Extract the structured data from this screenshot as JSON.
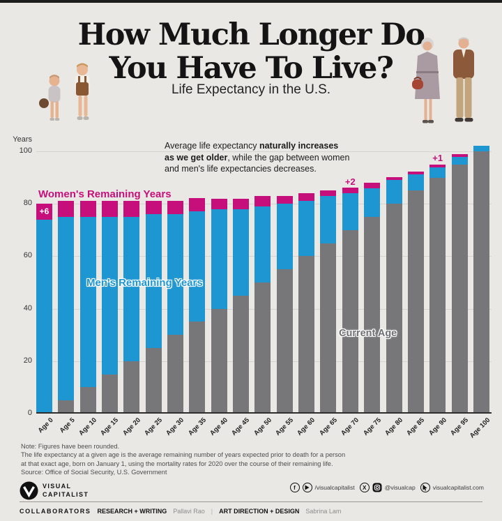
{
  "header": {
    "title_line1": "How Much Longer Do",
    "title_line2": "You Have To Live?",
    "subtitle": "Life Expectancy in the U.S."
  },
  "annotation": {
    "part1": "Average life expectancy ",
    "bold1": "naturally increases as we get older",
    "part2": ", while the gap between women and men's life expectancies decreases."
  },
  "labels": {
    "y_axis_title": "Years",
    "women_legend": "Women's Remaining Years",
    "men_legend": "Men's Remaining Years",
    "current_age": "Current Age"
  },
  "chart_data": {
    "type": "bar",
    "stacked": true,
    "title": "How Much Longer Do You Have To Live?",
    "subtitle": "Life Expectancy in the U.S.",
    "ylabel": "Years",
    "ylim": [
      0,
      105
    ],
    "y_ticks": [
      0,
      20,
      40,
      60,
      80,
      100
    ],
    "grid": true,
    "categories": [
      "Age 0",
      "Age 5",
      "Age 10",
      "Age 15",
      "Age 20",
      "Age 25",
      "Age 30",
      "Age 35",
      "Age 40",
      "Age 45",
      "Age 50",
      "Age 55",
      "Age 60",
      "Age 65",
      "Age 70",
      "Age 75",
      "Age 80",
      "Age 85",
      "Age 90",
      "Age 95",
      "Age 100"
    ],
    "series": [
      {
        "name": "Current Age",
        "color": "#77777a",
        "values": [
          0,
          5,
          10,
          15,
          20,
          25,
          30,
          35,
          40,
          45,
          50,
          55,
          60,
          65,
          70,
          75,
          80,
          85,
          90,
          95,
          100
        ]
      },
      {
        "name": "Men's Remaining Years",
        "color": "#1e96d2",
        "values": [
          74,
          70,
          65,
          60,
          55,
          51,
          46,
          42,
          38,
          33,
          29,
          25,
          21,
          18,
          14,
          11,
          9,
          6,
          4,
          3,
          2
        ]
      },
      {
        "name": "Women's Remaining Years",
        "color": "#c60f7b",
        "values": [
          80,
          76,
          71,
          66,
          61,
          56,
          51,
          47,
          42,
          37,
          33,
          28,
          24,
          20,
          16,
          13,
          10,
          7,
          5,
          4,
          2
        ]
      }
    ],
    "series_note": "Women's values are total remaining years for women; the pink segment drawn is women minus men. Bar top = current age + remaining years.",
    "gap_annotations": [
      {
        "category": "Age 0",
        "label": "+6",
        "placement": "inside"
      },
      {
        "category": "Age 70",
        "label": "+2",
        "placement": "above"
      },
      {
        "category": "Age 90",
        "label": "+1",
        "placement": "above"
      }
    ],
    "legend_position": "inside-plot"
  },
  "notes": {
    "lines": [
      "Note: Figures have been rounded.",
      "The life expectancy at a given age is the average remaining number of years expected prior to death for a person",
      "at that exact age, born on January 1, using the mortality rates for 2020 over the course of their remaining life.",
      "Source: Office of Social Security, U.S. Government"
    ]
  },
  "footer": {
    "logo_line1": "VISUAL",
    "logo_line2": "CAPITALIST",
    "social": {
      "handle1": "/visualcapitalist",
      "handle2": "@visualcap",
      "handle3": "visualcapitalist.com",
      "facebook_glyph": "f",
      "x_glyph": "X"
    },
    "collaborators": {
      "heading": "COLLABORATORS",
      "role1": "RESEARCH + WRITING",
      "name1": "Pallavi Rao",
      "sep": "|",
      "role2": "ART DIRECTION + DESIGN",
      "name2": "Sabrina Lam"
    }
  },
  "colors": {
    "background": "#eae8e4",
    "women_pink": "#c60f7b",
    "men_blue": "#1e96d2",
    "age_gray": "#77777a",
    "top_strip": "#1d1d1b"
  }
}
